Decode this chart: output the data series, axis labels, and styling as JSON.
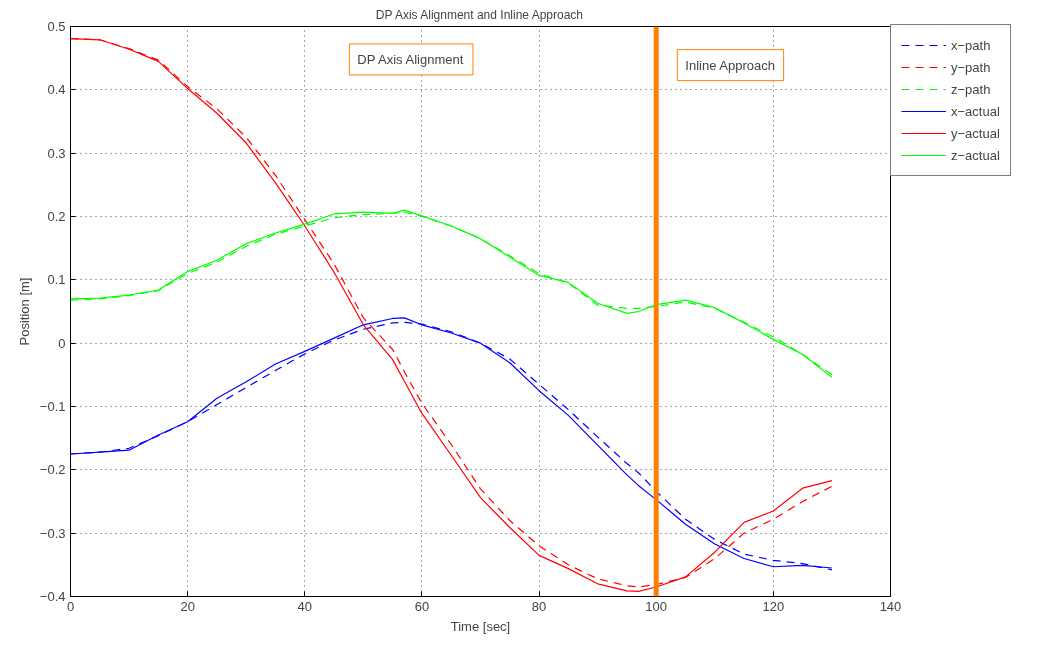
{
  "chart_data": {
    "type": "line",
    "title": "DP Axis Alignment and Inline Approach",
    "xlabel": "Time [sec]",
    "ylabel": "Position [m]",
    "xlim": [
      0,
      140
    ],
    "xticks": [
      0,
      20,
      40,
      60,
      80,
      100,
      120,
      140
    ],
    "ylim": [
      -0.4,
      0.5
    ],
    "yticks": [
      -0.4,
      -0.3,
      -0.2,
      -0.1,
      0,
      0.1,
      0.2,
      0.3,
      0.4,
      0.5
    ],
    "grid": true,
    "legend": "right",
    "marker": "none",
    "x": [
      0,
      5,
      10,
      15,
      20,
      25,
      30,
      35,
      40,
      45,
      50,
      55,
      57,
      60,
      65,
      70,
      75,
      80,
      85,
      90,
      95,
      97,
      100,
      105,
      110,
      115,
      120,
      125,
      130
    ],
    "series": [
      {
        "name": "x−path",
        "color": "#0000ff",
        "line_style": "dashed",
        "values": [
          -0.175,
          -0.172,
          -0.166,
          -0.146,
          -0.124,
          -0.097,
          -0.07,
          -0.043,
          -0.017,
          0.005,
          0.022,
          0.032,
          0.033,
          0.03,
          0.018,
          0.0,
          -0.025,
          -0.065,
          -0.105,
          -0.148,
          -0.19,
          -0.205,
          -0.234,
          -0.278,
          -0.31,
          -0.333,
          -0.343,
          -0.348,
          -0.358
        ]
      },
      {
        "name": "y−path",
        "color": "#ff0000",
        "line_style": "dashed",
        "values": [
          0.481,
          0.479,
          0.465,
          0.447,
          0.405,
          0.37,
          0.325,
          0.265,
          0.195,
          0.125,
          0.04,
          -0.01,
          -0.045,
          -0.095,
          -0.16,
          -0.23,
          -0.28,
          -0.32,
          -0.35,
          -0.372,
          -0.383,
          -0.385,
          -0.381,
          -0.37,
          -0.34,
          -0.3,
          -0.278,
          -0.25,
          -0.226
        ]
      },
      {
        "name": "z−path",
        "color": "#00ff00",
        "line_style": "dashed",
        "values": [
          0.068,
          0.07,
          0.075,
          0.083,
          0.11,
          0.128,
          0.153,
          0.172,
          0.185,
          0.198,
          0.203,
          0.205,
          0.207,
          0.2,
          0.185,
          0.165,
          0.138,
          0.11,
          0.095,
          0.06,
          0.055,
          0.055,
          0.058,
          0.065,
          0.055,
          0.033,
          0.01,
          -0.018,
          -0.05
        ]
      },
      {
        "name": "x−actual",
        "color": "#0000ff",
        "line_style": "solid",
        "values": [
          -0.175,
          -0.172,
          -0.169,
          -0.145,
          -0.124,
          -0.087,
          -0.061,
          -0.033,
          -0.013,
          0.008,
          0.029,
          0.039,
          0.04,
          0.029,
          0.016,
          0.0,
          -0.031,
          -0.075,
          -0.114,
          -0.161,
          -0.208,
          -0.225,
          -0.247,
          -0.286,
          -0.317,
          -0.34,
          -0.353,
          -0.351,
          -0.355
        ]
      },
      {
        "name": "y−actual",
        "color": "#ff0000",
        "line_style": "solid",
        "values": [
          0.481,
          0.479,
          0.464,
          0.445,
          0.402,
          0.363,
          0.316,
          0.253,
          0.185,
          0.112,
          0.029,
          -0.026,
          -0.06,
          -0.111,
          -0.177,
          -0.244,
          -0.291,
          -0.335,
          -0.356,
          -0.38,
          -0.391,
          -0.392,
          -0.385,
          -0.369,
          -0.33,
          -0.283,
          -0.265,
          -0.229,
          -0.217
        ]
      },
      {
        "name": "z−actual",
        "color": "#00ff00",
        "line_style": "solid",
        "values": [
          0.07,
          0.071,
          0.076,
          0.084,
          0.113,
          0.131,
          0.157,
          0.174,
          0.188,
          0.204,
          0.207,
          0.205,
          0.21,
          0.201,
          0.185,
          0.165,
          0.136,
          0.107,
          0.096,
          0.063,
          0.047,
          0.05,
          0.061,
          0.068,
          0.056,
          0.032,
          0.006,
          -0.018,
          -0.054
        ]
      }
    ],
    "ref_lines": [
      {
        "axis": "x",
        "value": 100,
        "color": "#ff8000"
      }
    ],
    "annotations": [
      "DP Axis Alignment",
      "Inline Approach"
    ]
  }
}
